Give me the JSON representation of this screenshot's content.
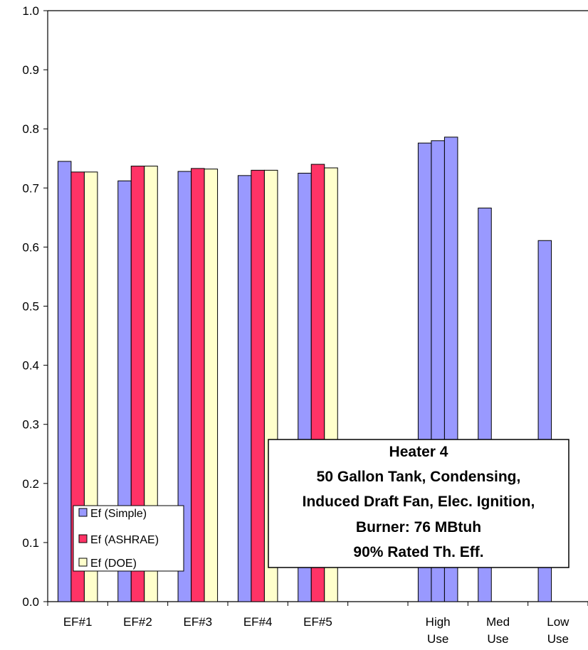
{
  "chart_data": {
    "type": "bar",
    "categories": [
      [
        "EF#1"
      ],
      [
        "EF#2"
      ],
      [
        "EF#3"
      ],
      [
        "EF#4"
      ],
      [
        "EF#5"
      ],
      [
        ""
      ],
      [
        "High",
        "Use"
      ],
      [
        "Med",
        "Use"
      ],
      [
        "Low",
        "Use"
      ]
    ],
    "series": [
      {
        "name": "Ef (Simple)",
        "color": "#9999ff",
        "values": [
          0.745,
          0.712,
          0.728,
          0.721,
          0.725,
          null,
          null,
          0.666,
          0.611
        ]
      },
      {
        "name": "Ef (ASHRAE)",
        "color": "#ff3366",
        "values": [
          0.727,
          0.737,
          0.733,
          0.73,
          0.74,
          null,
          null,
          null,
          null
        ]
      },
      {
        "name": "Ef (DOE)",
        "color": "#ffffcc",
        "values": [
          0.727,
          0.737,
          0.732,
          0.73,
          0.734,
          null,
          null,
          null,
          null
        ]
      }
    ],
    "high_use_values": [
      0.776,
      0.78,
      0.786
    ],
    "ylim": [
      0,
      1.0
    ],
    "yticks": [
      "0.0",
      "0.1",
      "0.2",
      "0.3",
      "0.4",
      "0.5",
      "0.6",
      "0.7",
      "0.8",
      "0.9",
      "1.0"
    ],
    "grid": false,
    "legend_position": "bottom-left",
    "annotation": [
      "Heater 4",
      "50 Gallon Tank, Condensing,",
      "Induced Draft Fan, Elec. Ignition,",
      "Burner: 76 MBtuh",
      "90% Rated Th. Eff."
    ]
  }
}
